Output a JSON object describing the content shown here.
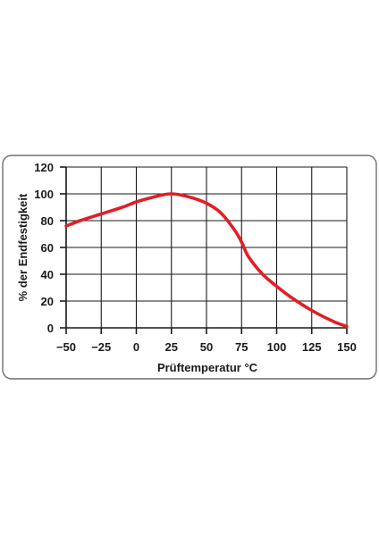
{
  "chart_data": {
    "type": "line",
    "xlabel": "Prüftemperatur °C",
    "ylabel": "% der Endfestigkeit",
    "xlim": [
      -50,
      150
    ],
    "ylim": [
      0,
      120
    ],
    "x_ticks": [
      -50,
      -25,
      0,
      25,
      50,
      75,
      100,
      125,
      150
    ],
    "x_tick_labels": [
      "−50",
      "−25",
      "0",
      "25",
      "50",
      "75",
      "100",
      "125",
      "150"
    ],
    "y_ticks": [
      0,
      20,
      40,
      60,
      80,
      100,
      120
    ],
    "y_tick_labels": [
      "0",
      "20",
      "40",
      "60",
      "80",
      "100",
      "120"
    ],
    "grid": true,
    "colors": {
      "line": "#e01f26",
      "grid": "#1a1a1a",
      "frame": "#6e6e6e"
    },
    "series": [
      {
        "x": [
          -50,
          -40,
          -25,
          -10,
          0,
          10,
          20,
          25,
          30,
          40,
          50,
          60,
          70,
          75,
          80,
          90,
          100,
          110,
          125,
          140,
          150
        ],
        "y": [
          76,
          80,
          85,
          90,
          94,
          97,
          99.5,
          100,
          99.5,
          97,
          93,
          86,
          73,
          64,
          53,
          40,
          31,
          23,
          13,
          5,
          1
        ]
      }
    ]
  }
}
